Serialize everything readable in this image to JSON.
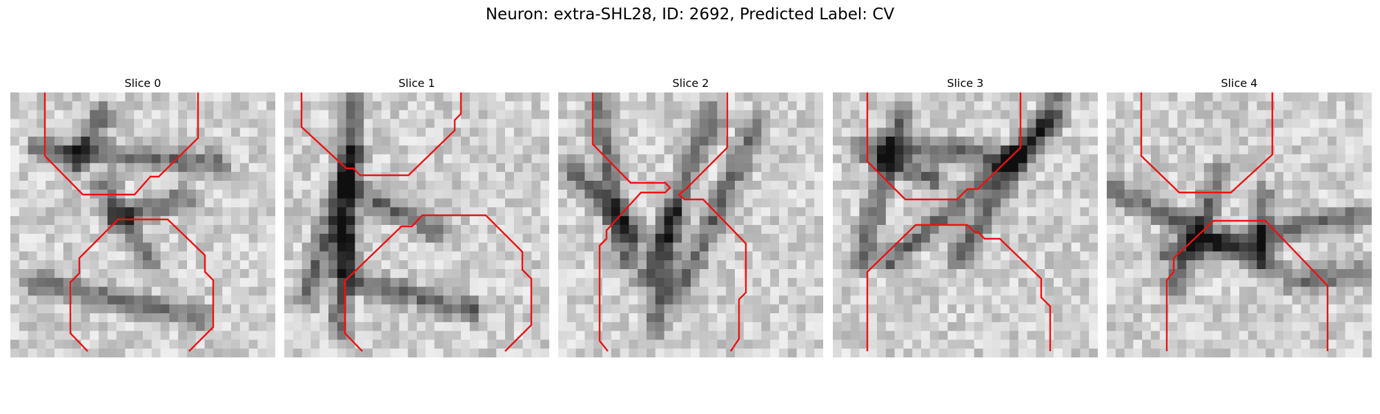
{
  "figure": {
    "title": "Neuron: extra-SHL28, ID: 2692, Predicted Label: CV"
  },
  "panels": [
    {
      "title": "Slice 0",
      "seed": 11,
      "lines": [
        [
          [
            50,
            0
          ],
          [
            50,
            92
          ],
          [
            105,
            148
          ],
          [
            180,
            148
          ],
          [
            203,
            122
          ],
          [
            215,
            122
          ],
          [
            272,
            66
          ],
          [
            272,
            0
          ]
        ],
        [
          [
            112,
            375
          ],
          [
            87,
            349
          ],
          [
            87,
            275
          ],
          [
            100,
            262
          ],
          [
            100,
            240
          ],
          [
            156,
            184
          ],
          [
            228,
            184
          ],
          [
            282,
            236
          ],
          [
            282,
            260
          ],
          [
            294,
            272
          ],
          [
            294,
            340
          ],
          [
            259,
            375
          ]
        ]
      ]
    },
    {
      "title": "Slice 1",
      "seed": 23,
      "lines": [
        [
          [
            25,
            0
          ],
          [
            25,
            50
          ],
          [
            90,
            110
          ],
          [
            100,
            110
          ],
          [
            110,
            120
          ],
          [
            180,
            120
          ],
          [
            247,
            55
          ],
          [
            247,
            40
          ],
          [
            256,
            31
          ],
          [
            256,
            0
          ]
        ],
        [
          [
            113,
            375
          ],
          [
            88,
            349
          ],
          [
            88,
            273
          ],
          [
            170,
            194
          ],
          [
            185,
            194
          ],
          [
            200,
            178
          ],
          [
            292,
            178
          ],
          [
            345,
            231
          ],
          [
            345,
            257
          ],
          [
            358,
            270
          ],
          [
            358,
            337
          ],
          [
            320,
            375
          ]
        ]
      ]
    },
    {
      "title": "Slice 2",
      "seed": 37,
      "lines": [
        [
          [
            50,
            0
          ],
          [
            50,
            75
          ],
          [
            105,
            131
          ],
          [
            155,
            131
          ],
          [
            162,
            138
          ],
          [
            155,
            145
          ],
          [
            120,
            145
          ],
          [
            70,
            200
          ],
          [
            70,
            212
          ],
          [
            60,
            222
          ],
          [
            60,
            360
          ],
          [
            72,
            375
          ]
        ],
        [
          [
            250,
            375
          ],
          [
            262,
            357
          ],
          [
            262,
            300
          ],
          [
            272,
            290
          ],
          [
            272,
            219
          ],
          [
            210,
            155
          ],
          [
            183,
            155
          ],
          [
            175,
            148
          ],
          [
            185,
            140
          ],
          [
            245,
            80
          ],
          [
            245,
            0
          ]
        ]
      ]
    },
    {
      "title": "Slice 3",
      "seed": 53,
      "lines": [
        [
          [
            50,
            0
          ],
          [
            50,
            100
          ],
          [
            105,
            155
          ],
          [
            180,
            155
          ],
          [
            195,
            140
          ],
          [
            210,
            140
          ],
          [
            272,
            80
          ],
          [
            272,
            0
          ]
        ],
        [
          [
            50,
            375
          ],
          [
            50,
            260
          ],
          [
            120,
            192
          ],
          [
            195,
            192
          ],
          [
            205,
            202
          ],
          [
            210,
            202
          ],
          [
            220,
            212
          ],
          [
            242,
            212
          ],
          [
            302,
            270
          ],
          [
            302,
            297
          ],
          [
            315,
            310
          ],
          [
            315,
            375
          ]
        ]
      ]
    },
    {
      "title": "Slice 4",
      "seed": 71,
      "lines": [
        [
          [
            50,
            0
          ],
          [
            50,
            92
          ],
          [
            105,
            145
          ],
          [
            180,
            145
          ],
          [
            240,
            90
          ],
          [
            240,
            0
          ]
        ],
        [
          [
            87,
            375
          ],
          [
            87,
            272
          ],
          [
            97,
            260
          ],
          [
            97,
            240
          ],
          [
            155,
            186
          ],
          [
            230,
            186
          ],
          [
            320,
            280
          ],
          [
            320,
            375
          ]
        ]
      ]
    }
  ]
}
